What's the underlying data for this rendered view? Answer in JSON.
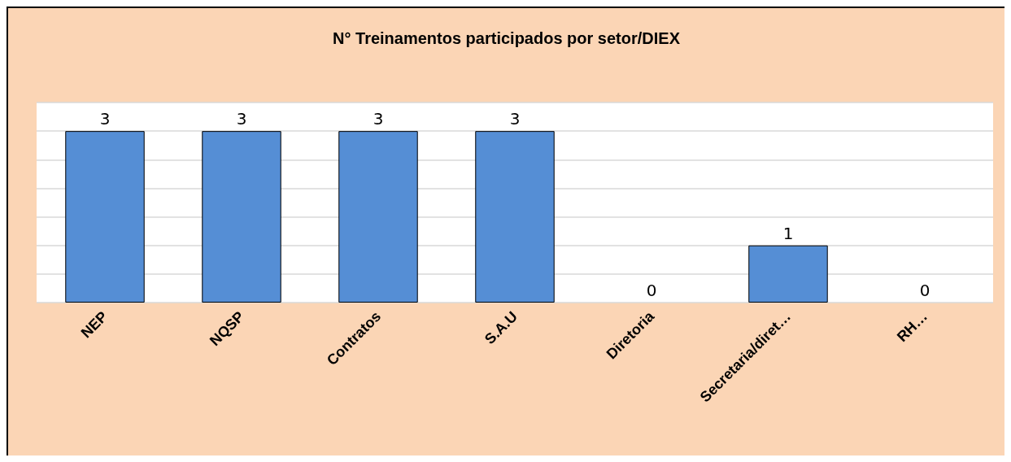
{
  "chart_data": {
    "type": "bar",
    "title": "N° Treinamentos participados por setor/DIEX",
    "categories": [
      "NEP",
      "NQSP",
      "Contratos",
      "S.A.U",
      "Diretoria",
      "Secretaria/diret…",
      "RH…"
    ],
    "values": [
      3,
      3,
      3,
      3,
      0,
      1,
      0
    ],
    "color": "#558ed5",
    "ylim": [
      0,
      3.5
    ],
    "yticks": [
      {
        "value": 0,
        "label": null
      },
      {
        "value": 0.5,
        "label": null
      },
      {
        "value": 1,
        "label": null
      },
      {
        "value": 1.5,
        "label": null
      },
      {
        "value": 2,
        "label": null
      },
      {
        "value": 2.5,
        "label": null
      },
      {
        "value": 3,
        "label": null
      },
      {
        "value": 3.5,
        "label": null
      }
    ],
    "grid": "y",
    "data_labels": true,
    "tick_labels": "x"
  }
}
